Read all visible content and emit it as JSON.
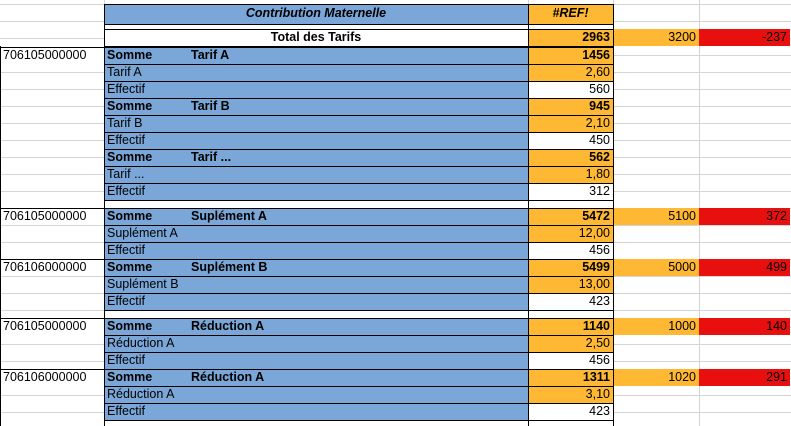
{
  "sheet": {
    "header": {
      "title": "Contribution Maternelle",
      "ref": "#REF!"
    },
    "total": {
      "label": "Total des Tarifs",
      "value": "2963",
      "budget": "3200",
      "ecart": "-237"
    },
    "colors": {
      "blue": "#7ba7d8",
      "orange": "#ffb833",
      "red": "#e8100f",
      "white": "#ffffff",
      "gridline": "#d4d4d4",
      "ref_marker": "#e8564a"
    },
    "groups": [
      {
        "code": "706105000000",
        "somme_label": "Somme",
        "name": "Tarif A",
        "total": "1456",
        "budget": "",
        "ecart": "",
        "price_label": "Tarif A",
        "price": "2,60",
        "effectif_label": "Effectif",
        "effectif": "560"
      },
      {
        "code": "",
        "somme_label": "Somme",
        "name": "Tarif B",
        "total": "945",
        "budget": "",
        "ecart": "",
        "price_label": "Tarif B",
        "price": "2,10",
        "effectif_label": "Effectif",
        "effectif": "450"
      },
      {
        "code": "",
        "somme_label": "Somme",
        "name": "Tarif ...",
        "total": "562",
        "budget": "",
        "ecart": "",
        "price_label": "Tarif ...",
        "price": "1,80",
        "effectif_label": "Effectif",
        "effectif": "312"
      },
      {
        "code": "706105000000",
        "somme_label": "Somme",
        "name": "Suplément A",
        "total": "5472",
        "budget": "5100",
        "ecart": "372",
        "price_label": "Suplément A",
        "price": "12,00",
        "effectif_label": "Effectif",
        "effectif": "456"
      },
      {
        "code": "706106000000",
        "somme_label": "Somme",
        "name": "Suplément B",
        "total": "5499",
        "budget": "5000",
        "ecart": "499",
        "price_label": "Suplément B",
        "price": "13,00",
        "effectif_label": "Effectif",
        "effectif": "423"
      },
      {
        "code": "706105000000",
        "somme_label": "Somme",
        "name": "Réduction A",
        "total": "1140",
        "budget": "1000",
        "ecart": "140",
        "price_label": "Réduction A",
        "price": "2,50",
        "effectif_label": "Effectif",
        "effectif": "456"
      },
      {
        "code": "706106000000",
        "somme_label": "Somme",
        "name": "Réduction A",
        "total": "1311",
        "budget": "1020",
        "ecart": "291",
        "price_label": "Réduction A",
        "price": "3,10",
        "effectif_label": "Effectif",
        "effectif": "423"
      }
    ]
  }
}
